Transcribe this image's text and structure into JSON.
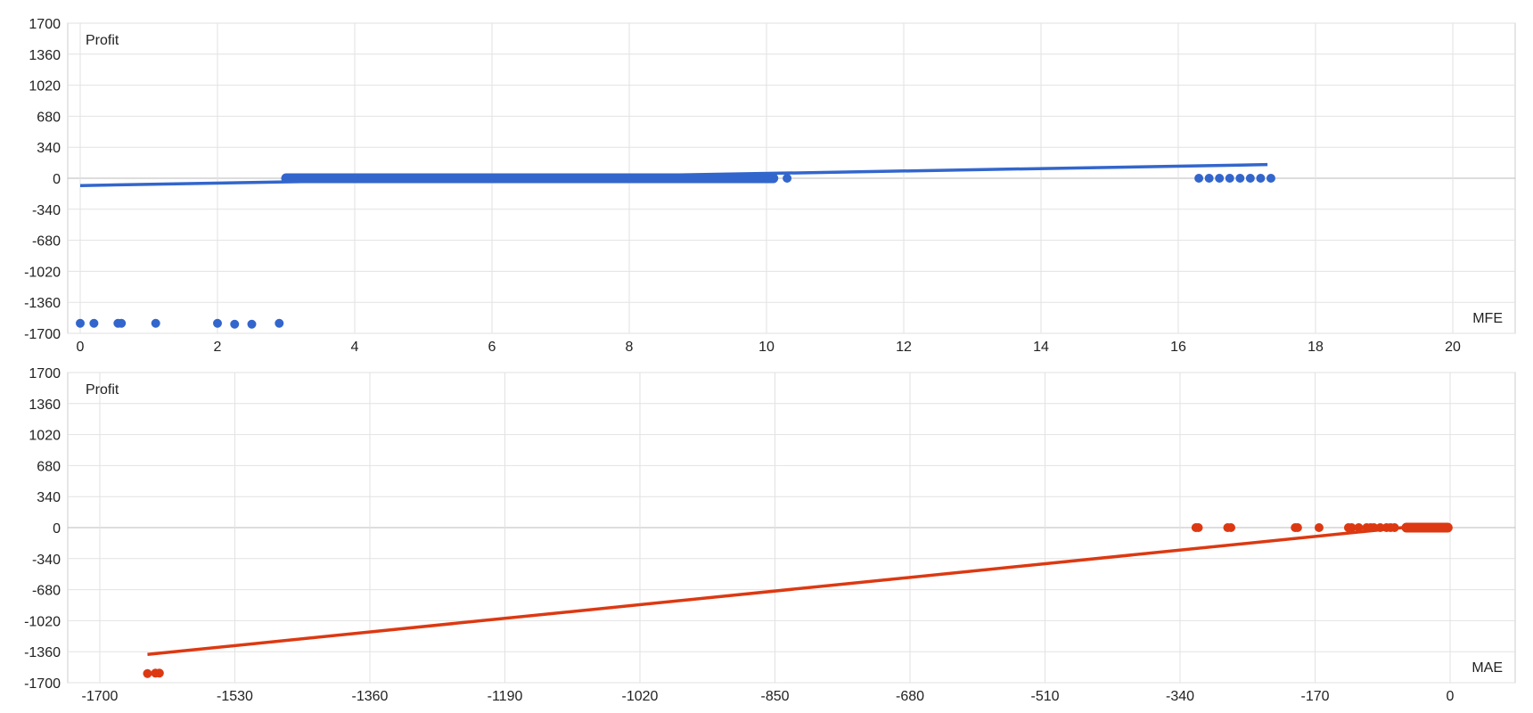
{
  "chart_data": [
    {
      "type": "scatter",
      "ylabel": "Profit",
      "xlabel": "MFE",
      "xlim": [
        0,
        20
      ],
      "ylim": [
        -1700,
        1700
      ],
      "x_ticks": [
        "0",
        "2",
        "4",
        "6",
        "8",
        "10",
        "12",
        "14",
        "16",
        "18",
        "20"
      ],
      "y_ticks": [
        "1700",
        "1360",
        "1020",
        "680",
        "340",
        "0",
        "-340",
        "-680",
        "-1020",
        "-1360",
        "-1700"
      ],
      "grid": true,
      "color": "#3366cc",
      "points": [
        {
          "x": 0.0,
          "y": -1590
        },
        {
          "x": 0.2,
          "y": -1590
        },
        {
          "x": 0.55,
          "y": -1590
        },
        {
          "x": 0.6,
          "y": -1590
        },
        {
          "x": 1.1,
          "y": -1590
        },
        {
          "x": 2.0,
          "y": -1590
        },
        {
          "x": 2.25,
          "y": -1600
        },
        {
          "x": 2.5,
          "y": -1600
        },
        {
          "x": 2.9,
          "y": -1590
        },
        {
          "x": 3.0,
          "y": 0
        },
        {
          "x": 3.5,
          "y": 0
        },
        {
          "x": 4.0,
          "y": 0
        },
        {
          "x": 4.5,
          "y": 0
        },
        {
          "x": 5.0,
          "y": 0
        },
        {
          "x": 5.5,
          "y": 0
        },
        {
          "x": 6.0,
          "y": 0
        },
        {
          "x": 6.5,
          "y": 0
        },
        {
          "x": 7.0,
          "y": 0
        },
        {
          "x": 7.5,
          "y": 0
        },
        {
          "x": 8.0,
          "y": 0
        },
        {
          "x": 8.5,
          "y": 0
        },
        {
          "x": 9.0,
          "y": 0
        },
        {
          "x": 9.5,
          "y": 0
        },
        {
          "x": 10.0,
          "y": 0
        },
        {
          "x": 10.3,
          "y": 0
        },
        {
          "x": 16.3,
          "y": 0
        },
        {
          "x": 16.45,
          "y": 0
        },
        {
          "x": 16.6,
          "y": 0
        },
        {
          "x": 16.75,
          "y": 0
        },
        {
          "x": 16.9,
          "y": 0
        },
        {
          "x": 17.05,
          "y": 0
        },
        {
          "x": 17.2,
          "y": 0
        },
        {
          "x": 17.35,
          "y": 0
        }
      ],
      "dense_band": {
        "x_from": 3.0,
        "x_to": 10.1,
        "y": 0
      },
      "trendline": {
        "x": [
          0,
          17.3
        ],
        "y": [
          -80,
          150
        ]
      }
    },
    {
      "type": "scatter",
      "ylabel": "Profit",
      "xlabel": "MAE",
      "xlim": [
        -1700,
        0
      ],
      "ylim": [
        -1700,
        1700
      ],
      "x_ticks": [
        "-1700",
        "-1530",
        "-1360",
        "-1190",
        "-1020",
        "-850",
        "-680",
        "-510",
        "-340",
        "-170",
        "0"
      ],
      "y_ticks": [
        "1700",
        "1360",
        "1020",
        "680",
        "340",
        "0",
        "-340",
        "-680",
        "-1020",
        "-1360",
        "-1700"
      ],
      "grid": true,
      "color": "#dc3912",
      "points": [
        {
          "x": -1640,
          "y": -1600
        },
        {
          "x": -1630,
          "y": -1595
        },
        {
          "x": -1625,
          "y": -1595
        },
        {
          "x": -320,
          "y": 0
        },
        {
          "x": -317,
          "y": 0
        },
        {
          "x": -280,
          "y": 0
        },
        {
          "x": -276,
          "y": 0
        },
        {
          "x": -195,
          "y": 0
        },
        {
          "x": -192,
          "y": 0
        },
        {
          "x": -165,
          "y": 0
        },
        {
          "x": -128,
          "y": 0
        },
        {
          "x": -124,
          "y": 0
        },
        {
          "x": -115,
          "y": 0
        },
        {
          "x": -105,
          "y": 0
        },
        {
          "x": -100,
          "y": 0
        },
        {
          "x": -96,
          "y": 0
        },
        {
          "x": -88,
          "y": 0
        },
        {
          "x": -80,
          "y": 0
        },
        {
          "x": -75,
          "y": 0
        },
        {
          "x": -70,
          "y": 0
        },
        {
          "x": -52,
          "y": 0
        },
        {
          "x": -45,
          "y": 0
        },
        {
          "x": -40,
          "y": 0
        },
        {
          "x": -35,
          "y": 0
        },
        {
          "x": -28,
          "y": 0
        },
        {
          "x": -20,
          "y": 0
        },
        {
          "x": -14,
          "y": 0
        },
        {
          "x": -8,
          "y": 0
        },
        {
          "x": -3,
          "y": 0
        }
      ],
      "dense_band": {
        "x_from": -55,
        "x_to": -3,
        "y": 0
      },
      "trendline": {
        "x": [
          -1640,
          -60
        ],
        "y": [
          -1390,
          0
        ]
      }
    }
  ]
}
